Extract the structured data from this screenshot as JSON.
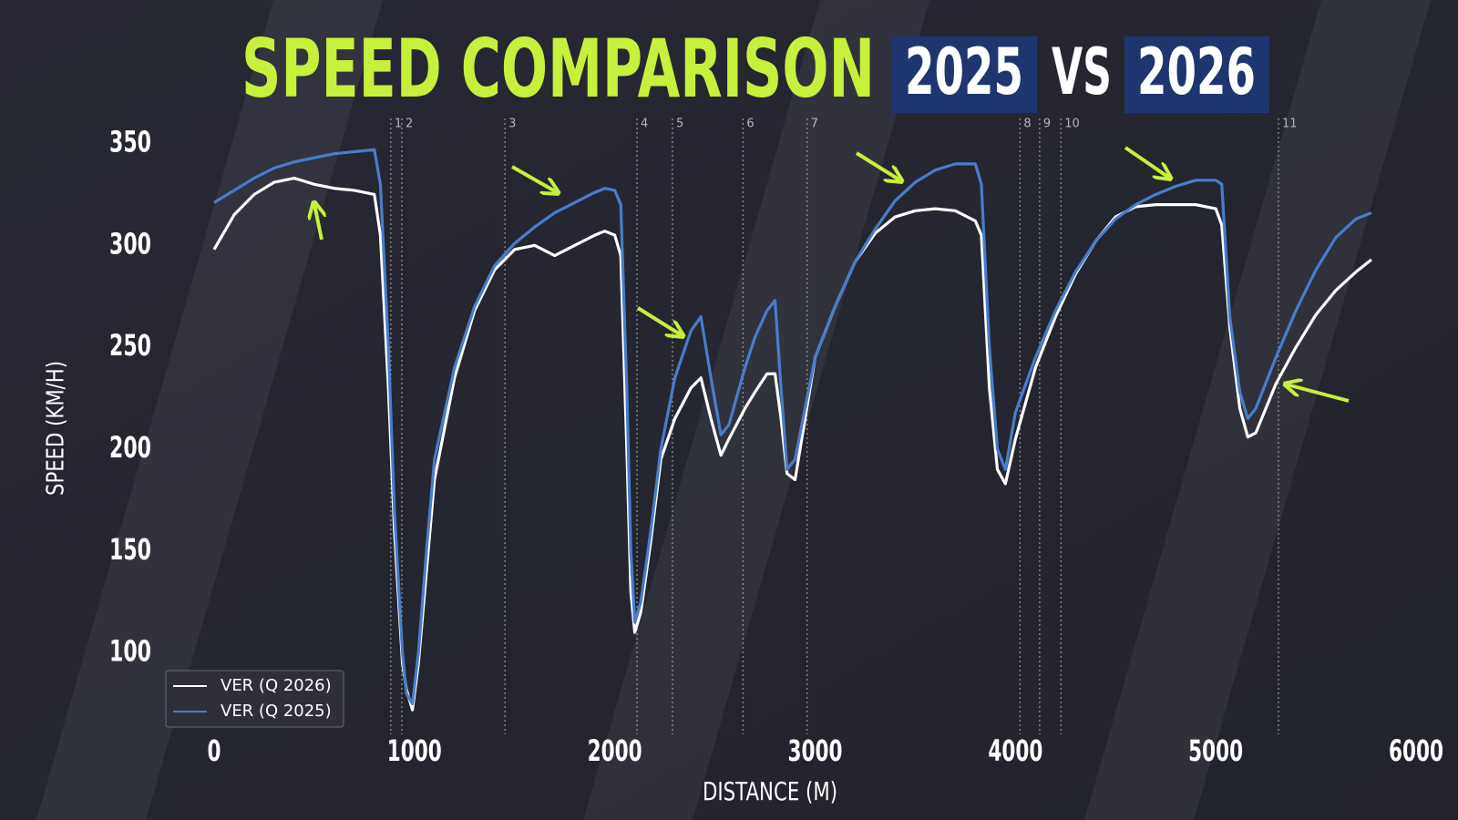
{
  "chart_data": {
    "type": "line",
    "title": "SPEED COMPARISON",
    "title_badges": [
      "2025",
      "2026"
    ],
    "title_joiner": "VS",
    "x_label": "DISTANCE (M)",
    "y_label": "SPEED (KM/H)",
    "xlim": [
      -250,
      6000
    ],
    "ylim": [
      60,
      365
    ],
    "xticks": [
      0,
      1000,
      2000,
      3000,
      4000,
      5000,
      6000
    ],
    "yticks": [
      100,
      150,
      200,
      250,
      300,
      350
    ],
    "grid": false,
    "legend": "lower left",
    "corners": [
      {
        "value": 882,
        "label": "1"
      },
      {
        "value": 937,
        "label": "2"
      },
      {
        "value": 1452,
        "label": "3"
      },
      {
        "value": 2111,
        "label": "4"
      },
      {
        "value": 2288,
        "label": "5"
      },
      {
        "value": 2640,
        "label": "6"
      },
      {
        "value": 2960,
        "label": "7"
      },
      {
        "value": 4023,
        "label": "8"
      },
      {
        "value": 4121,
        "label": "9"
      },
      {
        "value": 4227,
        "label": "10"
      },
      {
        "value": 5313,
        "label": "11"
      }
    ],
    "x": [
      0,
      100,
      200,
      300,
      400,
      500,
      600,
      700,
      800,
      830,
      870,
      900,
      940,
      960,
      990,
      1020,
      1060,
      1100,
      1200,
      1300,
      1400,
      1500,
      1600,
      1700,
      1800,
      1900,
      1950,
      2000,
      2030,
      2060,
      2080,
      2100,
      2130,
      2180,
      2230,
      2300,
      2380,
      2430,
      2480,
      2530,
      2570,
      2650,
      2700,
      2760,
      2800,
      2830,
      2860,
      2900,
      2950,
      3000,
      3100,
      3200,
      3300,
      3400,
      3500,
      3600,
      3700,
      3800,
      3830,
      3870,
      3910,
      3950,
      4000,
      4100,
      4200,
      4300,
      4400,
      4500,
      4600,
      4700,
      4800,
      4900,
      5000,
      5030,
      5070,
      5120,
      5160,
      5200,
      5300,
      5400,
      5500,
      5600,
      5700,
      5777
    ],
    "series": [
      {
        "name": "VER (Q 2026)",
        "color": "#ffffff",
        "values": [
          298,
          315,
          325,
          331,
          333,
          330,
          328,
          327,
          325,
          305,
          230,
          160,
          95,
          82,
          72,
          95,
          140,
          185,
          235,
          268,
          288,
          298,
          300,
          295,
          300,
          305,
          307,
          305,
          295,
          200,
          130,
          110,
          120,
          155,
          195,
          215,
          230,
          235,
          215,
          197,
          205,
          220,
          228,
          237,
          237,
          215,
          188,
          185,
          215,
          245,
          270,
          292,
          306,
          314,
          317,
          318,
          317,
          312,
          305,
          230,
          190,
          183,
          205,
          240,
          265,
          286,
          302,
          314,
          319,
          320,
          320,
          320,
          318,
          310,
          260,
          220,
          206,
          208,
          232,
          250,
          266,
          278,
          287,
          293
        ]
      },
      {
        "name": "VER (Q 2025)",
        "color": "#4a7cc9",
        "values": [
          321,
          327,
          333,
          338,
          341,
          343,
          345,
          346,
          347,
          330,
          250,
          170,
          100,
          80,
          75,
          100,
          150,
          195,
          240,
          270,
          290,
          301,
          309,
          316,
          321,
          326,
          328,
          327,
          320,
          230,
          150,
          115,
          125,
          160,
          200,
          235,
          258,
          265,
          235,
          207,
          212,
          240,
          255,
          268,
          273,
          230,
          190,
          195,
          220,
          245,
          270,
          292,
          308,
          322,
          331,
          337,
          340,
          340,
          330,
          250,
          200,
          190,
          218,
          245,
          268,
          287,
          302,
          313,
          320,
          325,
          329,
          332,
          332,
          330,
          265,
          228,
          215,
          220,
          245,
          268,
          288,
          304,
          313,
          316
        ]
      }
    ]
  }
}
